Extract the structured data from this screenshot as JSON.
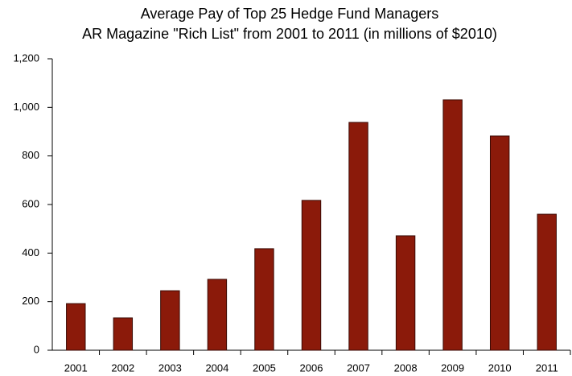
{
  "chart_data": {
    "type": "bar",
    "title": "Average Pay of Top 25 Hedge Fund Managers",
    "subtitle": "AR Magazine \"Rich List\" from 2001 to 2011 (in millions of $2010)",
    "categories": [
      "2001",
      "2002",
      "2003",
      "2004",
      "2005",
      "2006",
      "2007",
      "2008",
      "2009",
      "2010",
      "2011"
    ],
    "values": [
      192,
      133,
      245,
      292,
      418,
      617,
      938,
      471,
      1031,
      882,
      560
    ],
    "color": "#8b1a0a",
    "ylim": [
      0,
      1200
    ],
    "yticks": [
      0,
      200,
      400,
      600,
      800,
      {
        "value": 1000,
        "label": "1,000"
      },
      {
        "value": 1200,
        "label": "1,200"
      }
    ],
    "grid": false
  }
}
